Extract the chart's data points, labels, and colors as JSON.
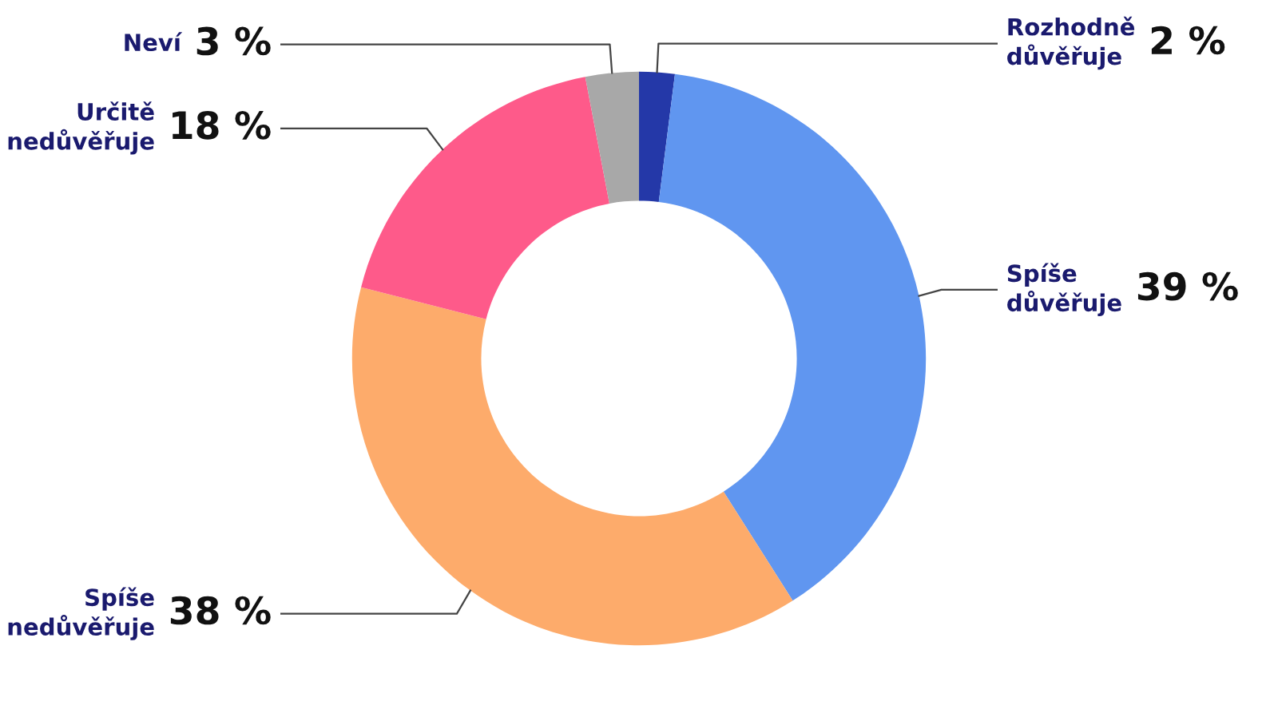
{
  "chart_data": {
    "type": "donut",
    "categories": [
      "Rozhodně\ndůvěřuje",
      "Spíše\ndůvěřuje",
      "Spíše\nnedůvěřuje",
      "Určitě\nnedůvěřuje",
      "Neví"
    ],
    "values": [
      2,
      39,
      38,
      18,
      3
    ],
    "value_labels": [
      "2 %",
      "39 %",
      "38 %",
      "18 %",
      "3 %"
    ],
    "colors": [
      "#2438a8",
      "#6096f0",
      "#fdab6b",
      "#fe5a8a",
      "#a8a8a8"
    ],
    "legend": false
  }
}
